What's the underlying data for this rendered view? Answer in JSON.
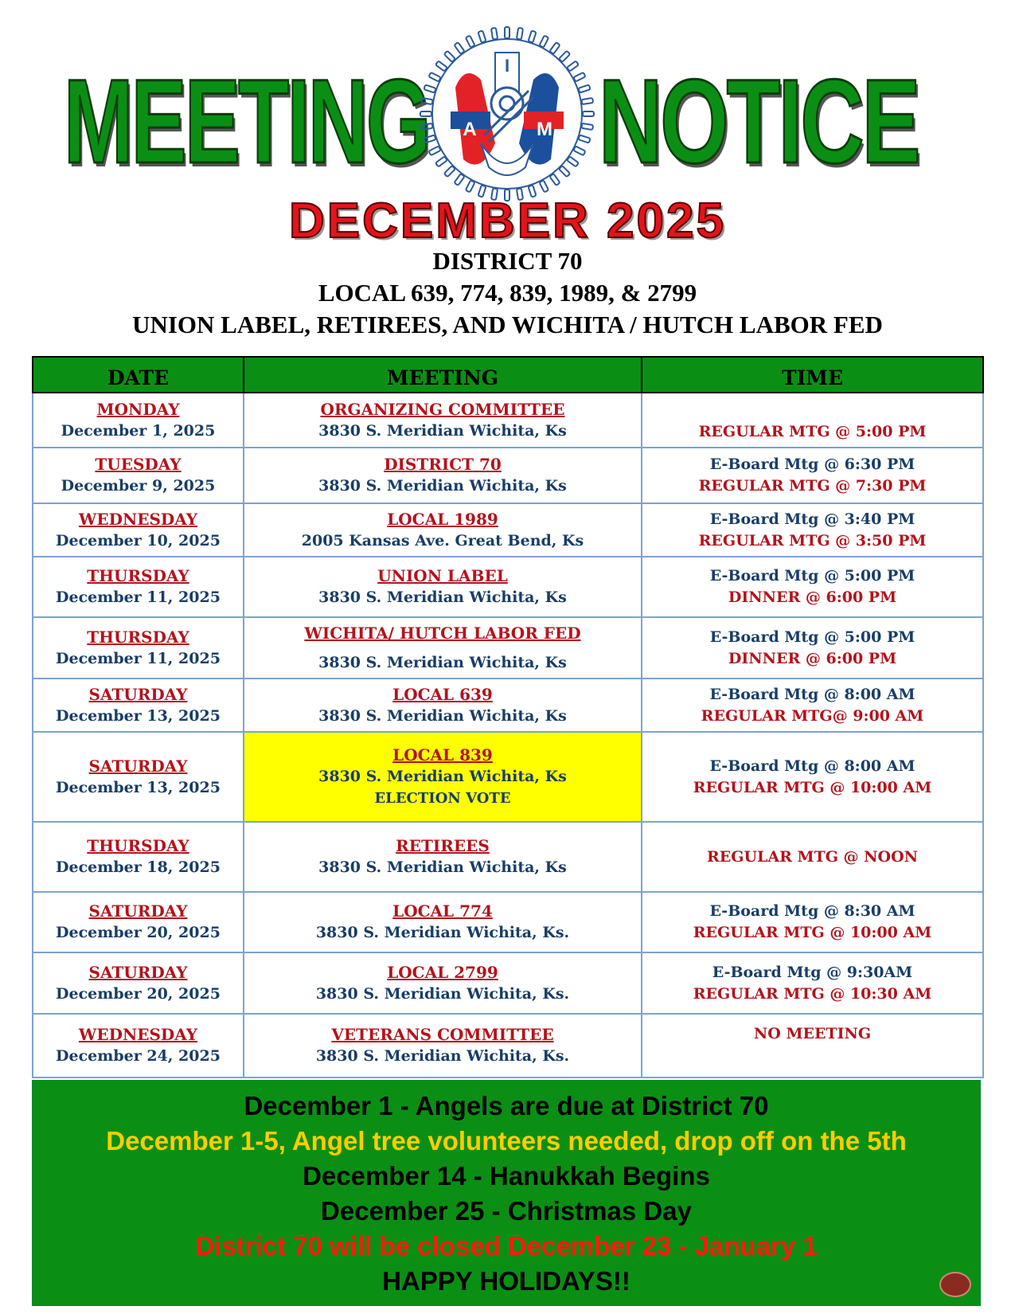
{
  "header": {
    "title_left": "MEETING",
    "title_right": "NOTICE",
    "logo_letters": [
      "I",
      "A",
      "M"
    ],
    "month": "DECEMBER 2025",
    "sub1": "DISTRICT 70",
    "sub2": "LOCAL 639, 774, 839, 1989, & 2799",
    "sub3": "UNION LABEL, RETIREES, AND WICHITA / HUTCH LABOR FED"
  },
  "table": {
    "columns": [
      "DATE",
      "MEETING",
      "TIME"
    ],
    "rows": [
      {
        "day": "MONDAY",
        "date": "December 1, 2025",
        "meeting": "ORGANIZING COMMITTEE",
        "address": "3830 S. Meridian  Wichita, Ks",
        "eboard": "",
        "regular": "REGULAR MTG @ 5:00 PM"
      },
      {
        "day": "TUESDAY",
        "date": "December 9, 2025",
        "meeting": "DISTRICT 70",
        "address": "3830 S. Meridian Wichita, Ks",
        "eboard": "E-Board Mtg @ 6:30 PM",
        "regular": "REGULAR MTG @ 7:30 PM"
      },
      {
        "day": "WEDNESDAY",
        "date": "December 10, 2025",
        "meeting": "LOCAL 1989",
        "address": "2005 Kansas Ave. Great Bend, Ks",
        "eboard": "E-Board Mtg @ 3:40 PM",
        "regular": "REGULAR MTG @ 3:50 PM"
      },
      {
        "day": "THURSDAY",
        "date": "December 11, 2025",
        "meeting": "UNION LABEL",
        "address": "3830 S. Meridian Wichita, Ks",
        "eboard": "E-Board Mtg @ 5:00 PM",
        "regular": "DINNER @ 6:00 PM"
      },
      {
        "day": "THURSDAY",
        "date": "December 11, 2025",
        "meeting": "WICHITA/ HUTCH LABOR FED",
        "address": "3830 S. Meridian Wichita, Ks",
        "eboard": "E-Board Mtg @ 5:00 PM",
        "regular": "DINNER @ 6:00 PM"
      },
      {
        "day": "SATURDAY",
        "date": "December 13, 2025",
        "meeting": "LOCAL 639",
        "address": "3830 S. Meridian  Wichita, Ks",
        "eboard": "E-Board Mtg @ 8:00 AM",
        "regular": "REGULAR MTG@ 9:00 AM"
      },
      {
        "day": "SATURDAY",
        "date": "December 13, 2025",
        "meeting": "LOCAL 839",
        "address": "3830 S. Meridian  Wichita, Ks",
        "note": "ELECTION VOTE",
        "eboard": "E-Board Mtg @ 8:00 AM",
        "regular": "REGULAR MTG @ 10:00 AM"
      },
      {
        "day": "THURSDAY",
        "date": "December 18, 2025",
        "meeting": "RETIREES",
        "address": "3830 S. Meridian  Wichita, Ks",
        "eboard": "",
        "regular": "REGULAR MTG @ NOON"
      },
      {
        "day": "SATURDAY",
        "date": "December 20, 2025",
        "meeting": "LOCAL 774",
        "address": "3830 S. Meridian  Wichita, Ks.",
        "eboard": "E-Board Mtg @ 8:30 AM",
        "regular": "REGULAR MTG @ 10:00 AM"
      },
      {
        "day": "SATURDAY",
        "date": "December 20, 2025",
        "meeting": "LOCAL 2799",
        "address": "3830 S. Meridian  Wichita, Ks.",
        "eboard": "E-Board Mtg @ 9:30AM",
        "regular": "REGULAR MTG @ 10:30 AM"
      },
      {
        "day": "WEDNESDAY",
        "date": "December 24, 2025",
        "meeting": "VETERANS COMMITTEE",
        "address": "3830 S. Meridian  Wichita, Ks.",
        "eboard": "",
        "regular": "NO MEETING"
      }
    ]
  },
  "notes": [
    {
      "text": "December 1 - Angels are due at District 70",
      "color": "#000000"
    },
    {
      "text": "December 1-5, Angel tree volunteers needed, drop off on the 5th",
      "color": "#ffcc00"
    },
    {
      "text": "December 14 - Hanukkah Begins",
      "color": "#000000"
    },
    {
      "text": "December 25 - Christmas Day",
      "color": "#000000"
    },
    {
      "text": "District 70 will be closed December 23 - January 1",
      "color": "#ff1a0a"
    },
    {
      "text": "HAPPY HOLIDAYS!!",
      "color": "#000000"
    }
  ],
  "colors": {
    "green": "#0a8f14",
    "red": "#b5121b",
    "navy": "#183d68",
    "highlight": "#ffff00"
  }
}
